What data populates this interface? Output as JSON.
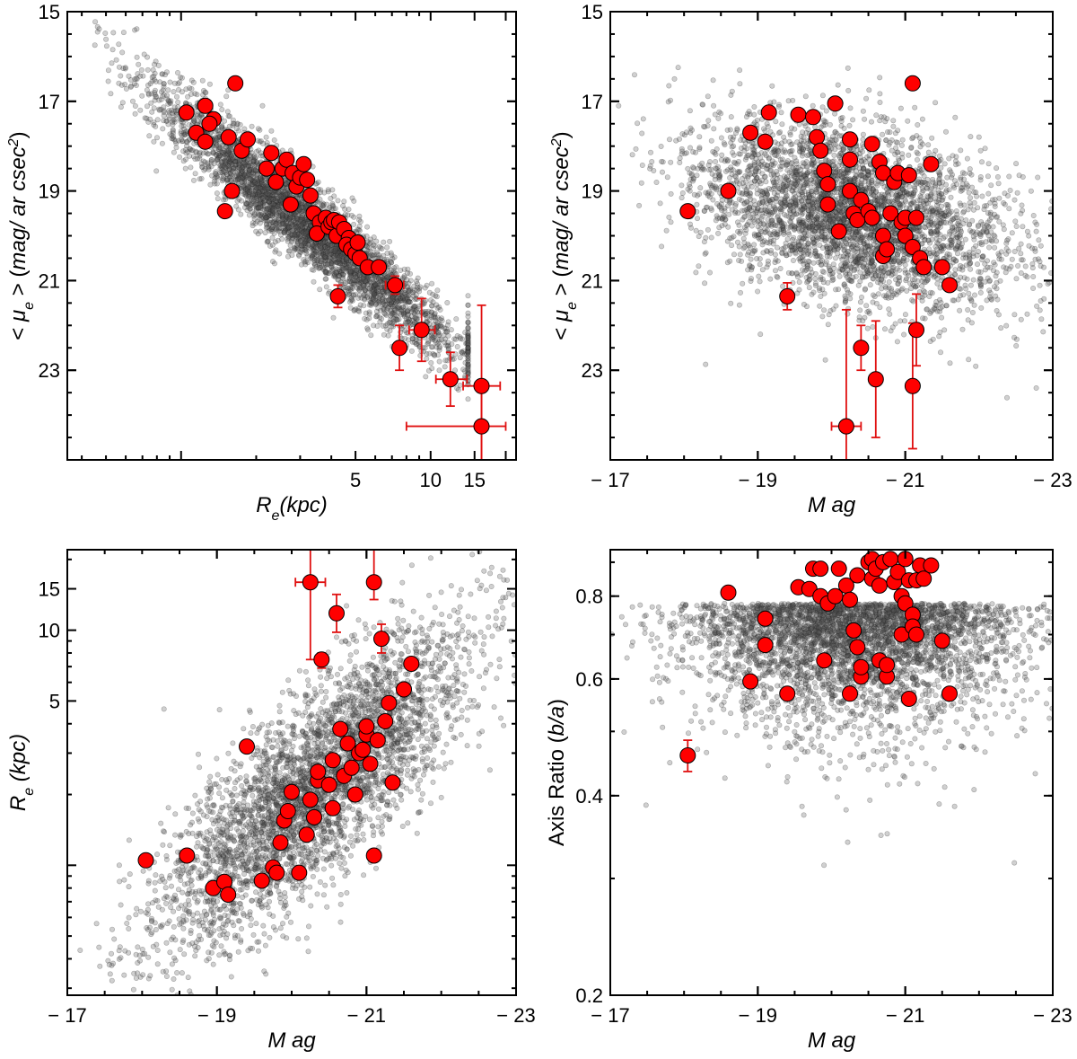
{
  "colors": {
    "sample": "#ff0000",
    "errorbar": "#e01010",
    "background_points": "#555555",
    "frame": "#000000"
  },
  "chart_data": [
    {
      "type": "scatter",
      "panel": "top-left",
      "xlabel": "R_e(kpc)",
      "xlabel_main": "R",
      "xlabel_sub": "e",
      "xlabel_rest": "(kpc)",
      "ylabel": "< μ_e > (mag/ arcsec^2)",
      "xscale": "log",
      "xlim": [
        0.35,
        22
      ],
      "ylim": [
        25,
        15
      ],
      "xtick_labels": [
        "5",
        "10",
        "15"
      ],
      "xticks": [
        5,
        10,
        15
      ],
      "ytick_labels": [
        "15",
        "17",
        "19",
        "21",
        "23"
      ],
      "yticks": [
        15,
        17,
        19,
        21,
        23
      ],
      "background": {
        "description_count": 6000,
        "trend": "linear in log Re",
        "scatter": 0.6
      },
      "points": [
        {
          "x": 1.05,
          "y": 17.25
        },
        {
          "x": 1.25,
          "y": 17.1
        },
        {
          "x": 1.35,
          "y": 17.4
        },
        {
          "x": 1.3,
          "y": 17.5
        },
        {
          "x": 1.15,
          "y": 17.7
        },
        {
          "x": 1.25,
          "y": 17.9
        },
        {
          "x": 1.55,
          "y": 17.8
        },
        {
          "x": 1.75,
          "y": 18.1
        },
        {
          "x": 1.85,
          "y": 17.85
        },
        {
          "x": 1.6,
          "y": 19.0
        },
        {
          "x": 1.5,
          "y": 19.45
        },
        {
          "x": 1.65,
          "y": 16.6
        },
        {
          "x": 2.2,
          "y": 18.5
        },
        {
          "x": 2.3,
          "y": 18.15
        },
        {
          "x": 2.4,
          "y": 18.8
        },
        {
          "x": 2.55,
          "y": 18.5
        },
        {
          "x": 2.65,
          "y": 18.3
        },
        {
          "x": 2.8,
          "y": 18.6
        },
        {
          "x": 2.9,
          "y": 18.9
        },
        {
          "x": 3.0,
          "y": 18.7
        },
        {
          "x": 3.1,
          "y": 18.4
        },
        {
          "x": 3.2,
          "y": 18.75
        },
        {
          "x": 3.3,
          "y": 19.1
        },
        {
          "x": 2.75,
          "y": 19.3
        },
        {
          "x": 3.4,
          "y": 19.5
        },
        {
          "x": 3.6,
          "y": 19.7
        },
        {
          "x": 3.5,
          "y": 19.95
        },
        {
          "x": 3.8,
          "y": 19.6
        },
        {
          "x": 3.9,
          "y": 19.8
        },
        {
          "x": 4.0,
          "y": 19.7
        },
        {
          "x": 4.1,
          "y": 19.65
        },
        {
          "x": 4.2,
          "y": 20.0
        },
        {
          "x": 4.3,
          "y": 19.7
        },
        {
          "x": 4.5,
          "y": 19.85
        },
        {
          "x": 4.7,
          "y": 20.05
        },
        {
          "x": 4.6,
          "y": 20.2
        },
        {
          "x": 4.8,
          "y": 20.3
        },
        {
          "x": 5.0,
          "y": 20.4
        },
        {
          "x": 5.1,
          "y": 20.15
        },
        {
          "x": 5.2,
          "y": 20.5
        },
        {
          "x": 5.6,
          "y": 20.7
        },
        {
          "x": 6.2,
          "y": 20.7
        },
        {
          "x": 7.2,
          "y": 21.1
        },
        {
          "x": 4.25,
          "y": 21.35
        },
        {
          "x": 7.5,
          "y": 22.5
        },
        {
          "x": 9.2,
          "y": 22.1
        },
        {
          "x": 12.0,
          "y": 23.2
        },
        {
          "x": 16.0,
          "y": 23.35
        },
        {
          "x": 16.0,
          "y": 24.25
        }
      ],
      "errorbars": [
        {
          "x": 7.5,
          "y": 22.5,
          "yerr": 0.5,
          "xerr_lo": 0,
          "xerr_hi": 0
        },
        {
          "x": 9.2,
          "y": 22.1,
          "yerr": 0.7,
          "xerr_lo": 1.0,
          "xerr_hi": 1.2
        },
        {
          "x": 12.0,
          "y": 23.2,
          "yerr": 0.6,
          "xerr_lo": 1.5,
          "xerr_hi": 2.0
        },
        {
          "x": 16.0,
          "y": 23.35,
          "yerr": 1.8,
          "xerr_lo": 2.5,
          "xerr_hi": 3.0
        },
        {
          "x": 16.0,
          "y": 24.25,
          "yerr": 0.9,
          "xerr_lo": 8.0,
          "xerr_hi": 4.0
        },
        {
          "x": 7.2,
          "y": 21.1,
          "yerr": 0.2,
          "xerr_lo": 0.6,
          "xerr_hi": 0.6
        },
        {
          "x": 4.25,
          "y": 21.35,
          "yerr": 0.25,
          "xerr_lo": 0,
          "xerr_hi": 0
        }
      ]
    },
    {
      "type": "scatter",
      "panel": "top-right",
      "xlabel": "Mag",
      "ylabel": "< μ_e > (mag/ arcsec^2)",
      "xlim": [
        -17,
        -23
      ],
      "ylim": [
        25,
        15
      ],
      "xtick_labels": [
        "− 17",
        "− 19",
        "− 21",
        "− 23"
      ],
      "xticks": [
        -17,
        -19,
        -21,
        -23
      ],
      "ytick_labels": [
        "15",
        "17",
        "19",
        "21",
        "23"
      ],
      "yticks": [
        15,
        17,
        19,
        21,
        23
      ],
      "background": {
        "description_count": 6000
      },
      "points": [
        {
          "x": -18.05,
          "y": 19.45
        },
        {
          "x": -18.6,
          "y": 19.0
        },
        {
          "x": -18.9,
          "y": 17.7
        },
        {
          "x": -19.1,
          "y": 17.9
        },
        {
          "x": -19.15,
          "y": 17.25
        },
        {
          "x": -19.4,
          "y": 21.35
        },
        {
          "x": -19.55,
          "y": 17.3
        },
        {
          "x": -19.75,
          "y": 17.35
        },
        {
          "x": -19.8,
          "y": 17.8
        },
        {
          "x": -19.85,
          "y": 18.1
        },
        {
          "x": -20.05,
          "y": 17.05
        },
        {
          "x": -19.9,
          "y": 18.55
        },
        {
          "x": -19.95,
          "y": 18.85
        },
        {
          "x": -19.95,
          "y": 19.3
        },
        {
          "x": -20.1,
          "y": 19.9
        },
        {
          "x": -20.25,
          "y": 18.3
        },
        {
          "x": -20.25,
          "y": 17.85
        },
        {
          "x": -20.25,
          "y": 19.0
        },
        {
          "x": -20.3,
          "y": 19.5
        },
        {
          "x": -20.4,
          "y": 19.2
        },
        {
          "x": -20.35,
          "y": 19.65
        },
        {
          "x": -20.4,
          "y": 22.5
        },
        {
          "x": -20.2,
          "y": 24.25
        },
        {
          "x": -20.5,
          "y": 19.45
        },
        {
          "x": -20.55,
          "y": 17.95
        },
        {
          "x": -20.55,
          "y": 19.6
        },
        {
          "x": -20.6,
          "y": 23.2
        },
        {
          "x": -20.65,
          "y": 18.35
        },
        {
          "x": -20.7,
          "y": 18.6
        },
        {
          "x": -20.7,
          "y": 20.0
        },
        {
          "x": -20.7,
          "y": 20.45
        },
        {
          "x": -20.75,
          "y": 20.3
        },
        {
          "x": -20.8,
          "y": 19.5
        },
        {
          "x": -20.85,
          "y": 18.8
        },
        {
          "x": -20.9,
          "y": 18.6
        },
        {
          "x": -20.95,
          "y": 19.7
        },
        {
          "x": -21.0,
          "y": 19.6
        },
        {
          "x": -21.0,
          "y": 20.0
        },
        {
          "x": -21.05,
          "y": 18.65
        },
        {
          "x": -21.1,
          "y": 20.25
        },
        {
          "x": -21.1,
          "y": 16.6
        },
        {
          "x": -21.1,
          "y": 23.35
        },
        {
          "x": -21.15,
          "y": 22.1
        },
        {
          "x": -21.15,
          "y": 19.6
        },
        {
          "x": -21.2,
          "y": 20.5
        },
        {
          "x": -21.25,
          "y": 20.7
        },
        {
          "x": -21.35,
          "y": 18.4
        },
        {
          "x": -21.5,
          "y": 20.7
        },
        {
          "x": -21.6,
          "y": 21.1
        }
      ],
      "errorbars": [
        {
          "x": -20.2,
          "y": 24.25,
          "yerr": 2.6,
          "xerr": 0.2
        },
        {
          "x": -20.4,
          "y": 22.5,
          "yerr": 0.5,
          "xerr": 0
        },
        {
          "x": -20.6,
          "y": 23.2,
          "yerr": 1.3,
          "xerr": 0
        },
        {
          "x": -21.1,
          "y": 23.35,
          "yerr": 1.4,
          "xerr": 0
        },
        {
          "x": -21.15,
          "y": 22.1,
          "yerr": 0.8,
          "xerr": 0
        },
        {
          "x": -19.4,
          "y": 21.35,
          "yerr": 0.3,
          "xerr": 0
        }
      ]
    },
    {
      "type": "scatter",
      "panel": "bottom-left",
      "xlabel": "Mag",
      "ylabel": "R_e (kpc)",
      "ylabel_main": "R",
      "ylabel_sub": "e",
      "ylabel_rest": " (kpc)",
      "yscale": "log",
      "xlim": [
        -17,
        -23
      ],
      "ylim": [
        0.28,
        22
      ],
      "xtick_labels": [
        "− 17",
        "− 19",
        "− 21",
        "− 23"
      ],
      "xticks": [
        -17,
        -19,
        -21,
        -23
      ],
      "ytick_labels": [
        "5",
        "10",
        "15"
      ],
      "yticks": [
        5,
        10,
        15
      ],
      "background": {
        "description_count": 6000
      },
      "points": [
        {
          "x": -18.05,
          "y": 1.05
        },
        {
          "x": -18.6,
          "y": 1.1
        },
        {
          "x": -18.95,
          "y": 0.8
        },
        {
          "x": -19.1,
          "y": 0.85
        },
        {
          "x": -19.15,
          "y": 0.75
        },
        {
          "x": -19.4,
          "y": 3.2
        },
        {
          "x": -19.6,
          "y": 0.86
        },
        {
          "x": -19.75,
          "y": 0.98
        },
        {
          "x": -19.8,
          "y": 0.93
        },
        {
          "x": -19.85,
          "y": 1.25
        },
        {
          "x": -19.9,
          "y": 1.55
        },
        {
          "x": -19.95,
          "y": 1.7
        },
        {
          "x": -20.0,
          "y": 2.05
        },
        {
          "x": -20.1,
          "y": 0.93
        },
        {
          "x": -20.2,
          "y": 1.35
        },
        {
          "x": -20.25,
          "y": 1.9
        },
        {
          "x": -20.25,
          "y": 16.0
        },
        {
          "x": -20.3,
          "y": 1.6
        },
        {
          "x": -20.35,
          "y": 2.3
        },
        {
          "x": -20.35,
          "y": 2.5
        },
        {
          "x": -20.4,
          "y": 7.5
        },
        {
          "x": -20.5,
          "y": 2.2
        },
        {
          "x": -20.55,
          "y": 2.8
        },
        {
          "x": -20.55,
          "y": 1.75
        },
        {
          "x": -20.6,
          "y": 11.8
        },
        {
          "x": -20.65,
          "y": 3.8
        },
        {
          "x": -20.7,
          "y": 2.4
        },
        {
          "x": -20.75,
          "y": 3.3
        },
        {
          "x": -20.8,
          "y": 2.6
        },
        {
          "x": -20.85,
          "y": 2.0
        },
        {
          "x": -20.9,
          "y": 3.0
        },
        {
          "x": -20.95,
          "y": 3.1
        },
        {
          "x": -21.0,
          "y": 3.6
        },
        {
          "x": -21.05,
          "y": 2.7
        },
        {
          "x": -21.1,
          "y": 1.1
        },
        {
          "x": -21.1,
          "y": 16.0
        },
        {
          "x": -21.15,
          "y": 3.4
        },
        {
          "x": -21.2,
          "y": 9.2
        },
        {
          "x": -21.25,
          "y": 4.1
        },
        {
          "x": -21.3,
          "y": 4.9
        },
        {
          "x": -21.35,
          "y": 2.25
        },
        {
          "x": -21.5,
          "y": 5.6
        },
        {
          "x": -21.6,
          "y": 7.2
        },
        {
          "x": -21.0,
          "y": 3.9
        }
      ],
      "errorbars": [
        {
          "x": -20.25,
          "y": 16.0,
          "ylo": 7.5,
          "yhi": 22,
          "xerr": 0.2
        },
        {
          "x": -20.6,
          "y": 11.8,
          "ylo": 9.8,
          "yhi": 14.2,
          "xerr": 0
        },
        {
          "x": -21.1,
          "y": 16.0,
          "ylo": 13.5,
          "yhi": 22,
          "xerr": 0
        },
        {
          "x": -21.2,
          "y": 9.2,
          "ylo": 8.0,
          "yhi": 10.6,
          "xerr": 0
        },
        {
          "x": -20.4,
          "y": 7.5,
          "ylo": 6.9,
          "yhi": 8.0,
          "xerr": 0
        }
      ]
    },
    {
      "type": "scatter",
      "panel": "bottom-right",
      "xlabel": "Mag",
      "ylabel": "Axis Ratio (b/a)",
      "yscale": "log",
      "xlim": [
        -17,
        -23
      ],
      "ylim": [
        0.2,
        0.94
      ],
      "xtick_labels": [
        "− 17",
        "− 19",
        "− 21",
        "− 23"
      ],
      "xticks": [
        -17,
        -19,
        -21,
        -23
      ],
      "ytick_labels": [
        "0.2",
        "0.4",
        "0.6",
        "0.8"
      ],
      "yticks": [
        0.2,
        0.4,
        0.6,
        0.8
      ],
      "background": {
        "description_count": 6000
      },
      "points": [
        {
          "x": -18.05,
          "y": 0.46
        },
        {
          "x": -18.6,
          "y": 0.81
        },
        {
          "x": -18.9,
          "y": 0.595
        },
        {
          "x": -19.1,
          "y": 0.675
        },
        {
          "x": -19.1,
          "y": 0.74
        },
        {
          "x": -19.4,
          "y": 0.57
        },
        {
          "x": -19.55,
          "y": 0.825
        },
        {
          "x": -19.7,
          "y": 0.82
        },
        {
          "x": -19.75,
          "y": 0.88
        },
        {
          "x": -19.85,
          "y": 0.88
        },
        {
          "x": -19.85,
          "y": 0.8
        },
        {
          "x": -19.9,
          "y": 0.64
        },
        {
          "x": -19.95,
          "y": 0.78
        },
        {
          "x": -20.05,
          "y": 0.8
        },
        {
          "x": -20.1,
          "y": 0.88
        },
        {
          "x": -20.2,
          "y": 0.83
        },
        {
          "x": -20.25,
          "y": 0.57
        },
        {
          "x": -20.25,
          "y": 0.79
        },
        {
          "x": -20.3,
          "y": 0.71
        },
        {
          "x": -20.35,
          "y": 0.67
        },
        {
          "x": -20.35,
          "y": 0.86
        },
        {
          "x": -20.4,
          "y": 0.605
        },
        {
          "x": -20.4,
          "y": 0.625
        },
        {
          "x": -20.5,
          "y": 0.9
        },
        {
          "x": -20.55,
          "y": 0.85
        },
        {
          "x": -20.55,
          "y": 0.91
        },
        {
          "x": -20.6,
          "y": 0.88
        },
        {
          "x": -20.65,
          "y": 0.83
        },
        {
          "x": -20.65,
          "y": 0.64
        },
        {
          "x": -20.7,
          "y": 0.9
        },
        {
          "x": -20.75,
          "y": 0.605
        },
        {
          "x": -20.75,
          "y": 0.63
        },
        {
          "x": -20.8,
          "y": 0.91
        },
        {
          "x": -20.85,
          "y": 0.84
        },
        {
          "x": -20.9,
          "y": 0.87
        },
        {
          "x": -20.95,
          "y": 0.8
        },
        {
          "x": -20.95,
          "y": 0.7
        },
        {
          "x": -21.0,
          "y": 0.78
        },
        {
          "x": -21.0,
          "y": 0.91
        },
        {
          "x": -21.05,
          "y": 0.845
        },
        {
          "x": -21.05,
          "y": 0.56
        },
        {
          "x": -21.1,
          "y": 0.75
        },
        {
          "x": -21.1,
          "y": 0.72
        },
        {
          "x": -21.15,
          "y": 0.7
        },
        {
          "x": -21.15,
          "y": 0.845
        },
        {
          "x": -21.2,
          "y": 0.89
        },
        {
          "x": -21.25,
          "y": 0.85
        },
        {
          "x": -21.35,
          "y": 0.89
        },
        {
          "x": -21.5,
          "y": 0.685
        },
        {
          "x": -21.6,
          "y": 0.57
        }
      ],
      "errorbars": [
        {
          "x": -18.05,
          "y": 0.46,
          "ylo": 0.435,
          "yhi": 0.485,
          "xerr": 0
        }
      ]
    }
  ]
}
